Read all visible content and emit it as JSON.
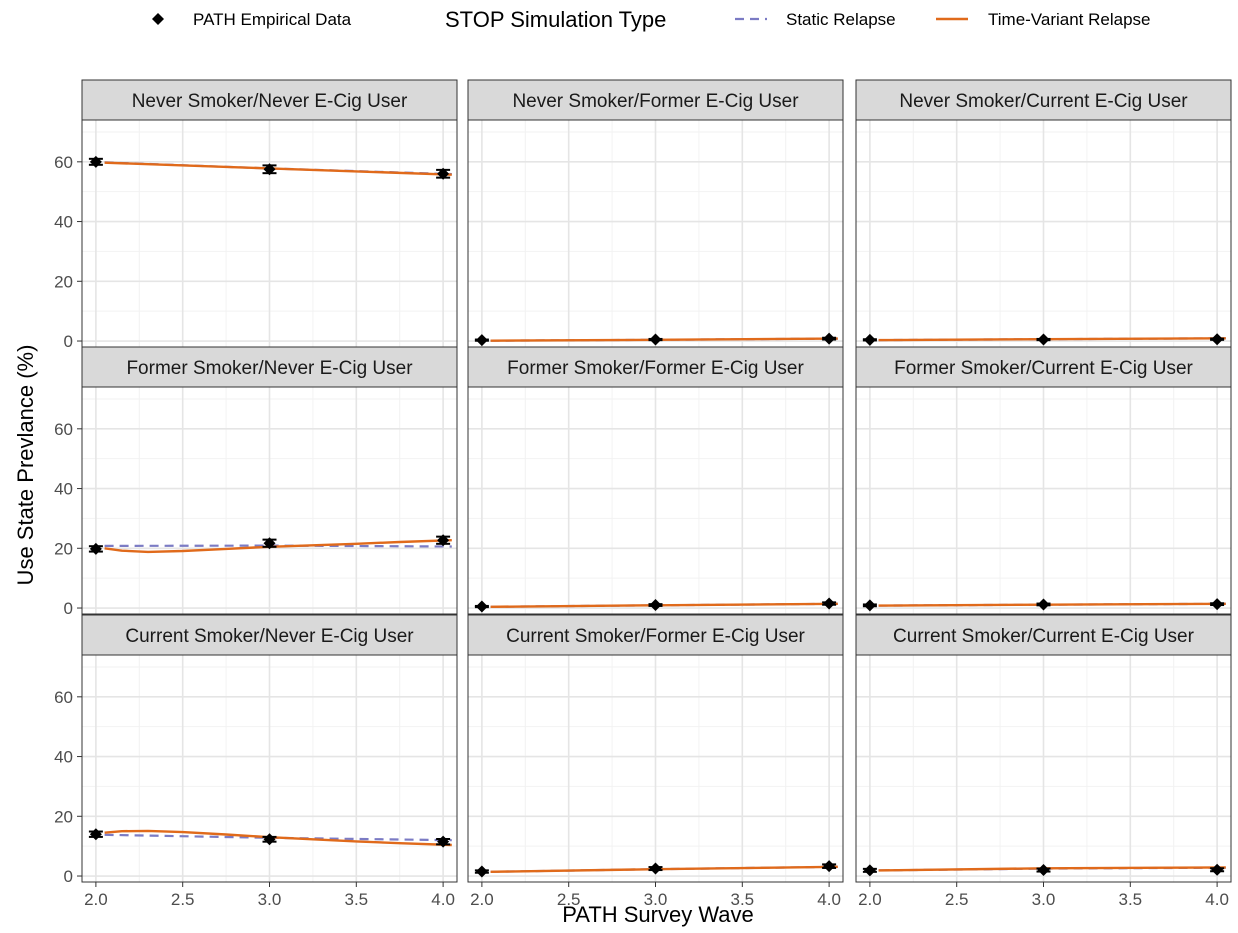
{
  "chart_data": {
    "type": "line",
    "xlabel": "PATH Survey Wave",
    "ylabel": "Use State Prevlance (%)",
    "xlim": [
      1.92,
      4.08
    ],
    "ylim": [
      -2,
      74
    ],
    "x_ticks": [
      2.0,
      2.5,
      3.0,
      3.5,
      4.0
    ],
    "x_tick_labels": [
      "2.0",
      "2.5",
      "3.0",
      "3.5",
      "4.0"
    ],
    "y_ticks": [
      0,
      20,
      40,
      60
    ],
    "y_tick_labels": [
      "0",
      "20",
      "40",
      "60"
    ],
    "grid": true,
    "legend": {
      "position": "top",
      "point_label": "PATH Empirical Data",
      "title": "STOP Simulation Type",
      "static_label": "Static Relapse",
      "timevariant_label": "Time-Variant Relapse",
      "static_color": "#7b7bc4",
      "timevariant_color": "#e06a1b"
    },
    "panels": [
      {
        "title": "Never Smoker/Never E-Cig User",
        "empirical": [
          {
            "x": 2,
            "y": 60.0,
            "err": 1.0
          },
          {
            "x": 3,
            "y": 57.5,
            "err": 1.3
          },
          {
            "x": 4,
            "y": 56.0,
            "err": 1.3
          }
        ],
        "static": [
          [
            2.05,
            59.8
          ],
          [
            3.0,
            57.8
          ],
          [
            4.05,
            55.9
          ]
        ],
        "time_variant": [
          [
            2.05,
            59.7
          ],
          [
            3.0,
            57.8
          ],
          [
            4.05,
            55.7
          ]
        ]
      },
      {
        "title": "Never Smoker/Former E-Cig User",
        "empirical": [
          {
            "x": 2,
            "y": 0.3,
            "err": 0.2
          },
          {
            "x": 3,
            "y": 0.5,
            "err": 0.2
          },
          {
            "x": 4,
            "y": 0.8,
            "err": 0.3
          }
        ],
        "static": [
          [
            2.05,
            0.1
          ],
          [
            3.0,
            0.4
          ],
          [
            4.05,
            0.8
          ]
        ],
        "time_variant": [
          [
            2.05,
            0.1
          ],
          [
            3.0,
            0.4
          ],
          [
            4.05,
            0.8
          ]
        ]
      },
      {
        "title": "Never Smoker/Current E-Cig User",
        "empirical": [
          {
            "x": 2,
            "y": 0.4,
            "err": 0.2
          },
          {
            "x": 3,
            "y": 0.5,
            "err": 0.2
          },
          {
            "x": 4,
            "y": 0.6,
            "err": 0.2
          }
        ],
        "static": [
          [
            2.05,
            0.3
          ],
          [
            3.0,
            0.6
          ],
          [
            4.05,
            0.9
          ]
        ],
        "time_variant": [
          [
            2.05,
            0.3
          ],
          [
            3.0,
            0.6
          ],
          [
            4.05,
            0.9
          ]
        ]
      },
      {
        "title": "Former Smoker/Never E-Cig User",
        "empirical": [
          {
            "x": 2,
            "y": 19.8,
            "err": 0.9
          },
          {
            "x": 3,
            "y": 21.7,
            "err": 1.2
          },
          {
            "x": 4,
            "y": 22.7,
            "err": 1.2
          }
        ],
        "static": [
          [
            2.05,
            20.8
          ],
          [
            3.0,
            20.9
          ],
          [
            4.05,
            20.6
          ]
        ],
        "time_variant": [
          [
            2.05,
            20.0
          ],
          [
            2.15,
            19.2
          ],
          [
            2.3,
            18.8
          ],
          [
            2.5,
            19.1
          ],
          [
            2.75,
            19.8
          ],
          [
            3.0,
            20.5
          ],
          [
            3.25,
            21.0
          ],
          [
            3.5,
            21.5
          ],
          [
            3.75,
            22.1
          ],
          [
            4.05,
            22.7
          ]
        ]
      },
      {
        "title": "Former Smoker/Former E-Cig User",
        "empirical": [
          {
            "x": 2,
            "y": 0.5,
            "err": 0.2
          },
          {
            "x": 3,
            "y": 1.0,
            "err": 0.3
          },
          {
            "x": 4,
            "y": 1.5,
            "err": 0.4
          }
        ],
        "static": [
          [
            2.05,
            0.4
          ],
          [
            3.0,
            0.9
          ],
          [
            4.05,
            1.4
          ]
        ],
        "time_variant": [
          [
            2.05,
            0.4
          ],
          [
            3.0,
            0.9
          ],
          [
            4.05,
            1.4
          ]
        ]
      },
      {
        "title": "Former Smoker/Current E-Cig User",
        "empirical": [
          {
            "x": 2,
            "y": 0.9,
            "err": 0.3
          },
          {
            "x": 3,
            "y": 1.2,
            "err": 0.3
          },
          {
            "x": 4,
            "y": 1.3,
            "err": 0.3
          }
        ],
        "static": [
          [
            2.05,
            0.8
          ],
          [
            3.0,
            1.1
          ],
          [
            4.05,
            1.4
          ]
        ],
        "time_variant": [
          [
            2.05,
            0.8
          ],
          [
            3.0,
            1.1
          ],
          [
            4.05,
            1.4
          ]
        ]
      },
      {
        "title": "Current Smoker/Never E-Cig User",
        "empirical": [
          {
            "x": 2,
            "y": 14.0,
            "err": 0.9
          },
          {
            "x": 3,
            "y": 12.3,
            "err": 0.8
          },
          {
            "x": 4,
            "y": 11.5,
            "err": 0.9
          }
        ],
        "static": [
          [
            2.05,
            13.8
          ],
          [
            3.0,
            12.8
          ],
          [
            4.05,
            12.0
          ]
        ],
        "time_variant": [
          [
            2.05,
            14.5
          ],
          [
            2.15,
            15.0
          ],
          [
            2.3,
            15.1
          ],
          [
            2.5,
            14.7
          ],
          [
            2.75,
            13.9
          ],
          [
            3.0,
            13.0
          ],
          [
            3.25,
            12.3
          ],
          [
            3.5,
            11.6
          ],
          [
            3.75,
            11.0
          ],
          [
            4.05,
            10.4
          ]
        ]
      },
      {
        "title": "Current Smoker/Former E-Cig User",
        "empirical": [
          {
            "x": 2,
            "y": 1.5,
            "err": 0.4
          },
          {
            "x": 3,
            "y": 2.5,
            "err": 0.5
          },
          {
            "x": 4,
            "y": 3.3,
            "err": 0.6
          }
        ],
        "static": [
          [
            2.05,
            1.4
          ],
          [
            3.0,
            2.3
          ],
          [
            4.05,
            3.1
          ]
        ],
        "time_variant": [
          [
            2.05,
            1.4
          ],
          [
            3.0,
            2.3
          ],
          [
            4.05,
            3.1
          ]
        ]
      },
      {
        "title": "Current Smoker/Current E-Cig User",
        "empirical": [
          {
            "x": 2,
            "y": 1.9,
            "err": 0.5
          },
          {
            "x": 3,
            "y": 2.0,
            "err": 0.5
          },
          {
            "x": 4,
            "y": 2.1,
            "err": 0.5
          }
        ],
        "static": [
          [
            2.05,
            1.9
          ],
          [
            3.0,
            2.5
          ],
          [
            4.05,
            2.8
          ]
        ],
        "time_variant": [
          [
            2.05,
            1.9
          ],
          [
            3.0,
            2.6
          ],
          [
            4.05,
            2.9
          ]
        ]
      }
    ]
  }
}
